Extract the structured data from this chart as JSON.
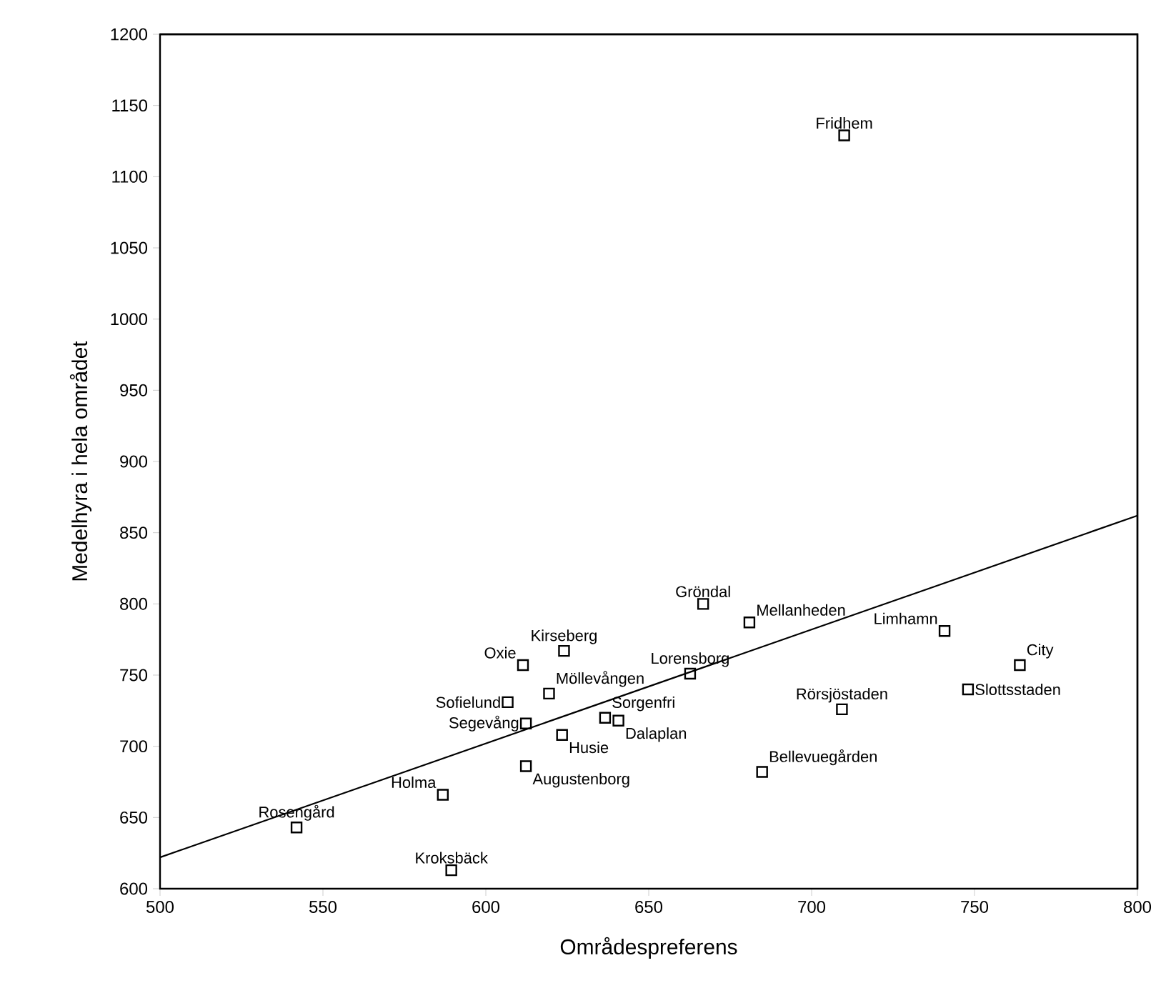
{
  "chart_data": {
    "type": "scatter",
    "xlabel": "Områdespreferens",
    "ylabel": "Medelhyra i hela området",
    "xlim": [
      500,
      800
    ],
    "ylim": [
      600,
      1200
    ],
    "xticks": [
      500,
      550,
      600,
      650,
      700,
      750,
      800
    ],
    "yticks": [
      600,
      650,
      700,
      750,
      800,
      850,
      900,
      950,
      1000,
      1050,
      1100,
      1150,
      1200
    ],
    "series": [
      {
        "type": "scatter",
        "marker": "square",
        "color": "#000000",
        "x": [
          710,
          666.7,
          680.9,
          740.8,
          763.9,
          748,
          662.7,
          709.3,
          624,
          611.4,
          619.4,
          606.7,
          636.6,
          640.7,
          612.3,
          623.4,
          612.3,
          684.8,
          586.8,
          541.9,
          589.4
        ],
        "values": [
          1129,
          800,
          787,
          781,
          757,
          740,
          751,
          726,
          767,
          757,
          737,
          731,
          720,
          718,
          716,
          708,
          686,
          682,
          666,
          643,
          613
        ]
      },
      {
        "type": "line",
        "marker": "none",
        "line_style": "solid",
        "color": "#000000",
        "x": [
          500,
          800
        ],
        "values": [
          622,
          862
        ]
      }
    ],
    "annotations": [
      {
        "text": "Fridhem",
        "x": 710,
        "y": 1129
      },
      {
        "text": "Gröndal",
        "x": 666.7,
        "y": 800
      },
      {
        "text": "Mellanheden",
        "x": 680.9,
        "y": 787
      },
      {
        "text": "Limhamn",
        "x": 740.8,
        "y": 781
      },
      {
        "text": "City",
        "x": 763.9,
        "y": 757
      },
      {
        "text": "Slottsstaden",
        "x": 748,
        "y": 740
      },
      {
        "text": "Lorensborg",
        "x": 662.7,
        "y": 751
      },
      {
        "text": "Rörsjöstaden",
        "x": 709.3,
        "y": 726
      },
      {
        "text": "Kirseberg",
        "x": 624,
        "y": 767
      },
      {
        "text": "Oxie",
        "x": 611.4,
        "y": 757
      },
      {
        "text": "Möllevången",
        "x": 619.4,
        "y": 737
      },
      {
        "text": "Sofielund",
        "x": 606.7,
        "y": 731
      },
      {
        "text": "Sorgenfri",
        "x": 636.6,
        "y": 720
      },
      {
        "text": "Dalaplan",
        "x": 640.7,
        "y": 718
      },
      {
        "text": "Segevång",
        "x": 612.3,
        "y": 716
      },
      {
        "text": "Husie",
        "x": 623.4,
        "y": 708
      },
      {
        "text": "Augustenborg",
        "x": 612.3,
        "y": 686
      },
      {
        "text": "Bellevuegården",
        "x": 684.8,
        "y": 682
      },
      {
        "text": "Holma",
        "x": 586.8,
        "y": 666
      },
      {
        "text": "Rosengård",
        "x": 541.9,
        "y": 643
      },
      {
        "text": "Kroksbäck",
        "x": 589.4,
        "y": 613
      }
    ]
  }
}
